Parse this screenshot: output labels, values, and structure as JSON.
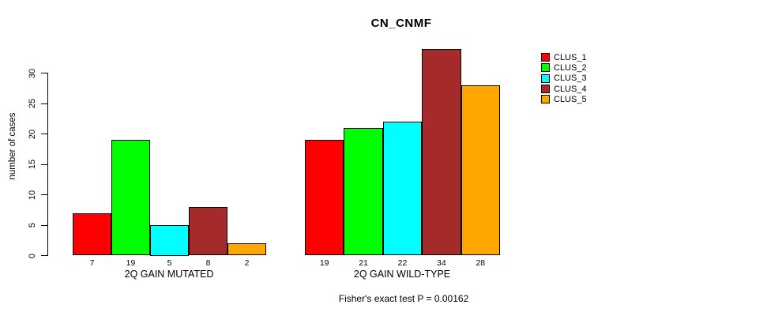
{
  "title": "CN_CNMF",
  "footer_note": "Fisher's exact test P = 0.00162",
  "colors": {
    "background": "#ffffff",
    "axis": "#000000",
    "text": "#000000",
    "bar_border": "#000000"
  },
  "chart_data": {
    "type": "bar",
    "title": "CN_CNMF",
    "xlabel": "",
    "ylabel": "number of cases",
    "ylim": [
      0,
      30
    ],
    "yticks": [
      0,
      5,
      10,
      15,
      20,
      25,
      30
    ],
    "grid": false,
    "legend_position": "right-outside-top",
    "categories": [
      "2Q GAIN MUTATED",
      "2Q GAIN WILD-TYPE"
    ],
    "groups": [
      {
        "label": "2Q GAIN MUTATED",
        "values": [
          7,
          19,
          5,
          8,
          2
        ]
      },
      {
        "label": "2Q GAIN WILD-TYPE",
        "values": [
          19,
          21,
          22,
          34,
          28
        ]
      }
    ],
    "series": [
      {
        "name": "CLUS_1",
        "color": "#FF0000",
        "values": [
          7,
          19
        ]
      },
      {
        "name": "CLUS_2",
        "color": "#00FF00",
        "values": [
          19,
          21
        ]
      },
      {
        "name": "CLUS_3",
        "color": "#00FFFF",
        "values": [
          5,
          22
        ]
      },
      {
        "name": "CLUS_4",
        "color": "#A52A2A",
        "values": [
          8,
          34
        ]
      },
      {
        "name": "CLUS_5",
        "color": "#FFA500",
        "values": [
          2,
          28
        ]
      }
    ],
    "bar_value_labels_group1": [
      "7",
      "19",
      "5",
      "8",
      "2"
    ],
    "bar_value_labels_group2": [
      "19",
      "21",
      "22",
      "34",
      "28"
    ],
    "annotation": "Fisher's exact test P = 0.00162"
  }
}
